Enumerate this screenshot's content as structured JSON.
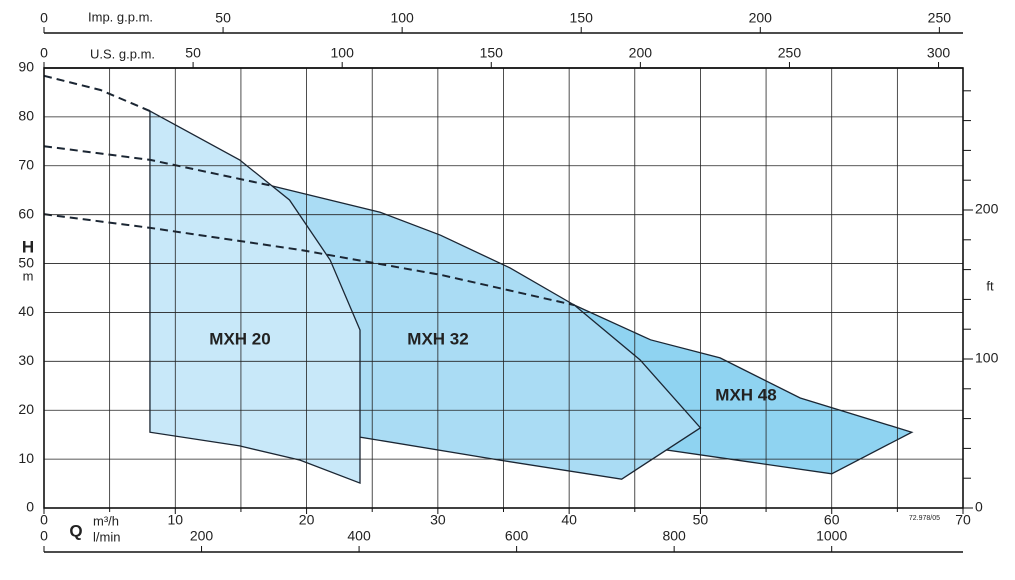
{
  "chart_data": {
    "type": "region",
    "ylabel": "H",
    "yunit": "m",
    "xlabel": "m³/h",
    "q_label": "Q",
    "code": "72.978/05",
    "xlim": [
      0,
      70
    ],
    "xticks": [
      0,
      10,
      20,
      30,
      40,
      50,
      60,
      70
    ],
    "x_minor_ticks": [
      5,
      15,
      25,
      35,
      45,
      55,
      65
    ],
    "ylim": [
      0,
      90
    ],
    "yticks": [
      0,
      10,
      20,
      30,
      40,
      50,
      60,
      70,
      80,
      90
    ],
    "grid": true,
    "y2label": "ft",
    "y2lim": [
      0,
      295.3
    ],
    "y2ticks": [
      0,
      100,
      200
    ],
    "y2_minor_ticks": [
      20,
      40,
      60,
      80,
      120,
      140,
      160,
      180,
      220,
      240,
      260,
      280
    ],
    "bottom_axis2": {
      "label": "l/min",
      "lim": [
        0,
        1166.7
      ],
      "ticks": [
        0,
        200,
        400,
        600,
        800,
        1000
      ]
    },
    "top_axes": [
      {
        "label": "Imp. g.p.m.",
        "lim": [
          0,
          256.6
        ],
        "ticks": [
          0,
          50,
          100,
          150,
          200,
          250
        ]
      },
      {
        "label": "U.S. g.p.m.",
        "lim": [
          0,
          308.2
        ],
        "ticks": [
          0,
          50,
          100,
          150,
          200,
          250,
          300
        ]
      }
    ],
    "series": [
      {
        "name": "MXH 48",
        "color": "#8fd3f1",
        "x": [
          40.4,
          46.2,
          51.5,
          57.6,
          66.1,
          60,
          53.8,
          47.3
        ],
        "y": [
          41.5,
          34.4,
          30.7,
          22.5,
          15.5,
          7,
          9.4,
          11.9
        ],
        "dashed_x": [
          0,
          8.1,
          19.5,
          30.2,
          40.4
        ],
        "dashed_y": [
          60.1,
          57.3,
          52.8,
          47.7,
          41.5
        ]
      },
      {
        "name": "MXH 32",
        "color": "#aadcf4",
        "x": [
          17.2,
          25.6,
          30.2,
          35.5,
          40.4,
          45.4,
          50,
          44,
          34.7,
          24.07
        ],
        "y": [
          66,
          60.5,
          55.8,
          49.1,
          41.5,
          30.3,
          16.4,
          5.9,
          9.8,
          14.5
        ],
        "dashed_x": [
          0,
          8.1,
          17.2
        ],
        "dashed_y": [
          74,
          71.2,
          66
        ]
      },
      {
        "name": "MXH 20",
        "color": "#c8e8f9",
        "x": [
          8.07,
          14.9,
          18.7,
          21.8,
          24.07,
          24.07,
          19.5,
          14.9,
          8.07
        ],
        "y": [
          81.2,
          71.2,
          63,
          50.7,
          36.4,
          5.1,
          9.8,
          12.7,
          15.5
        ],
        "dashed_x": [
          0,
          4.3,
          8.07
        ],
        "dashed_y": [
          88.4,
          85.5,
          81.2
        ]
      }
    ]
  }
}
